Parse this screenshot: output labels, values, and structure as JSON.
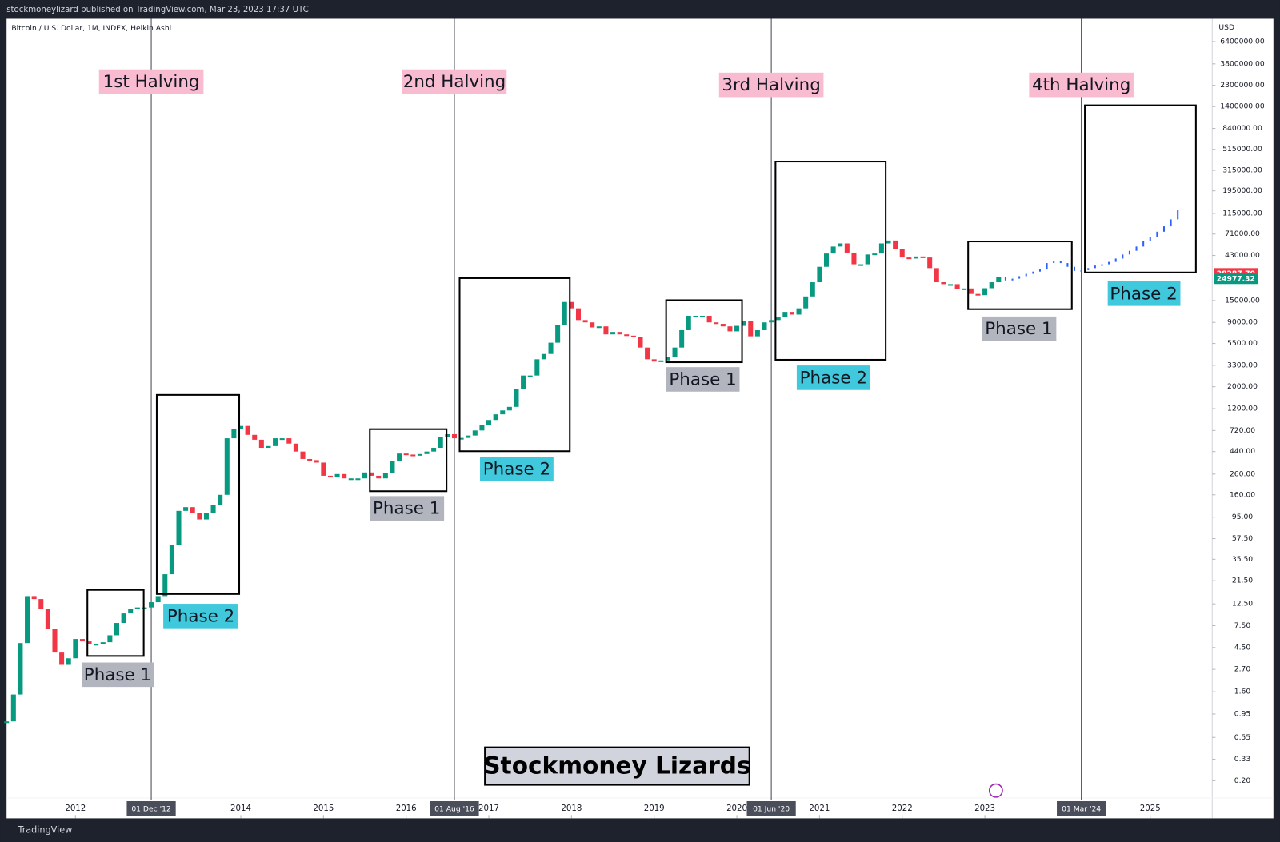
{
  "header": {
    "text": "stockmoneylizard published on TradingView.com, Mar 23, 2023 17:37 UTC"
  },
  "chart_data": {
    "type": "candlestick",
    "symbol": "Bitcoin / U.S. Dollar, 1M, INDEX, Heikin Ashi",
    "y_unit": "USD",
    "log_scale": true,
    "up_color": "#089981",
    "down_color": "#f23645",
    "x": [
      "2011-03",
      "2011-04",
      "2011-05",
      "2011-06",
      "2011-07",
      "2011-08",
      "2011-09",
      "2011-10",
      "2011-11",
      "2011-12",
      "2012-01",
      "2012-02",
      "2012-03",
      "2012-04",
      "2012-05",
      "2012-06",
      "2012-07",
      "2012-08",
      "2012-09",
      "2012-10",
      "2012-11",
      "2012-12",
      "2013-01",
      "2013-02",
      "2013-03",
      "2013-04",
      "2013-05",
      "2013-06",
      "2013-07",
      "2013-08",
      "2013-09",
      "2013-10",
      "2013-11",
      "2013-12",
      "2014-01",
      "2014-02",
      "2014-03",
      "2014-04",
      "2014-05",
      "2014-06",
      "2014-07",
      "2014-08",
      "2014-09",
      "2014-10",
      "2014-11",
      "2014-12",
      "2015-01",
      "2015-02",
      "2015-03",
      "2015-04",
      "2015-05",
      "2015-06",
      "2015-07",
      "2015-08",
      "2015-09",
      "2015-10",
      "2015-11",
      "2015-12",
      "2016-01",
      "2016-02",
      "2016-03",
      "2016-04",
      "2016-05",
      "2016-06",
      "2016-07",
      "2016-08",
      "2016-09",
      "2016-10",
      "2016-11",
      "2016-12",
      "2017-01",
      "2017-02",
      "2017-03",
      "2017-04",
      "2017-05",
      "2017-06",
      "2017-07",
      "2017-08",
      "2017-09",
      "2017-10",
      "2017-11",
      "2017-12",
      "2018-01",
      "2018-02",
      "2018-03",
      "2018-04",
      "2018-05",
      "2018-06",
      "2018-07",
      "2018-08",
      "2018-09",
      "2018-10",
      "2018-11",
      "2018-12",
      "2019-01",
      "2019-02",
      "2019-03",
      "2019-04",
      "2019-05",
      "2019-06",
      "2019-07",
      "2019-08",
      "2019-09",
      "2019-10",
      "2019-11",
      "2019-12",
      "2020-01",
      "2020-02",
      "2020-03",
      "2020-04",
      "2020-05",
      "2020-06",
      "2020-07",
      "2020-08",
      "2020-09",
      "2020-10",
      "2020-11",
      "2020-12",
      "2021-01",
      "2021-02",
      "2021-03",
      "2021-04",
      "2021-05",
      "2021-06",
      "2021-07",
      "2021-08",
      "2021-09",
      "2021-10",
      "2021-11",
      "2021-12",
      "2022-01",
      "2022-02",
      "2022-03",
      "2022-04",
      "2022-05",
      "2022-06",
      "2022-07",
      "2022-08",
      "2022-09",
      "2022-10",
      "2022-11",
      "2022-12",
      "2023-01",
      "2023-02",
      "2023-03"
    ],
    "values": [
      0.8,
      1.5,
      5,
      15,
      14,
      11,
      7,
      4,
      3,
      3.5,
      5.5,
      5.2,
      4.9,
      4.9,
      5.1,
      6,
      8,
      10,
      11,
      11.5,
      11.5,
      13,
      15,
      25,
      50,
      110,
      120,
      105,
      90,
      105,
      125,
      160,
      600,
      750,
      800,
      650,
      580,
      480,
      500,
      600,
      600,
      530,
      440,
      370,
      360,
      340,
      250,
      240,
      260,
      235,
      235,
      235,
      270,
      250,
      235,
      265,
      350,
      420,
      410,
      400,
      415,
      440,
      480,
      620,
      660,
      600,
      605,
      640,
      720,
      820,
      920,
      1050,
      1150,
      1250,
      1900,
      2600,
      2600,
      3800,
      4300,
      5600,
      8500,
      14500,
      12500,
      9500,
      9000,
      8000,
      8200,
      6800,
      7200,
      6800,
      6600,
      6400,
      5000,
      3800,
      3600,
      3700,
      4000,
      5000,
      7500,
      10500,
      10500,
      10500,
      9000,
      8700,
      8200,
      7300,
      8300,
      9300,
      6500,
      7500,
      9000,
      9500,
      10100,
      11500,
      10800,
      12500,
      16500,
      23000,
      33000,
      45000,
      53000,
      57000,
      46000,
      35000,
      35000,
      44000,
      45000,
      57000,
      61000,
      50000,
      41000,
      40000,
      42000,
      41000,
      32000,
      23000,
      22000,
      22000,
      19800,
      19900,
      17500,
      17000,
      20000,
      23000,
      26000
    ],
    "projection": {
      "color": "#2962ff",
      "x": [
        "2023-04",
        "2023-05",
        "2023-06",
        "2023-07",
        "2023-08",
        "2023-09",
        "2023-10",
        "2023-11",
        "2023-12",
        "2024-01",
        "2024-02",
        "2024-03",
        "2024-04",
        "2024-05",
        "2024-06",
        "2024-07",
        "2024-08",
        "2024-09",
        "2024-10",
        "2024-11",
        "2024-12",
        "2025-01",
        "2025-02",
        "2025-03",
        "2025-04",
        "2025-05"
      ],
      "values": [
        24000,
        25000,
        26500,
        28000,
        29500,
        31000,
        36000,
        38000,
        36000,
        33000,
        30000,
        30500,
        32000,
        34000,
        35000,
        37000,
        40000,
        44000,
        48000,
        53000,
        60000,
        66000,
        75000,
        85000,
        100000,
        125000
      ]
    },
    "xlim": [
      "2011-03",
      "2025-10"
    ],
    "xticks": [
      {
        "value": "2012-01",
        "label": "2012"
      },
      {
        "value": "2014-01",
        "label": "2014"
      },
      {
        "value": "2015-01",
        "label": "2015"
      },
      {
        "value": "2016-01",
        "label": "2016"
      },
      {
        "value": "2017-01",
        "label": "2017"
      },
      {
        "value": "2018-01",
        "label": "2018"
      },
      {
        "value": "2019-01",
        "label": "2019"
      },
      {
        "value": "2020-01",
        "label": "2020"
      },
      {
        "value": "2021-01",
        "label": "2021"
      },
      {
        "value": "2022-01",
        "label": "2022"
      },
      {
        "value": "2023-01",
        "label": "2023"
      },
      {
        "value": "2025-01",
        "label": "2025"
      }
    ],
    "ylim": [
      0.083,
      10900000
    ],
    "yticks": [
      {
        "value": 6400000,
        "label": "6400000.00"
      },
      {
        "value": 3800000,
        "label": "3800000.00"
      },
      {
        "value": 2300000,
        "label": "2300000.00"
      },
      {
        "value": 1400000,
        "label": "1400000.00"
      },
      {
        "value": 840000,
        "label": "840000.00"
      },
      {
        "value": 515000,
        "label": "515000.00"
      },
      {
        "value": 315000,
        "label": "315000.00"
      },
      {
        "value": 195000,
        "label": "195000.00"
      },
      {
        "value": 115000,
        "label": "115000.00"
      },
      {
        "value": 71000,
        "label": "71000.00"
      },
      {
        "value": 43000,
        "label": "43000.00"
      },
      {
        "value": 15000,
        "label": "15000.00"
      },
      {
        "value": 9000,
        "label": "9000.00"
      },
      {
        "value": 5500,
        "label": "5500.00"
      },
      {
        "value": 3300,
        "label": "3300.00"
      },
      {
        "value": 2000,
        "label": "2000.00"
      },
      {
        "value": 1200,
        "label": "1200.00"
      },
      {
        "value": 720,
        "label": "720.00"
      },
      {
        "value": 440,
        "label": "440.00"
      },
      {
        "value": 260,
        "label": "260.00"
      },
      {
        "value": 160,
        "label": "160.00"
      },
      {
        "value": 95,
        "label": "95.00"
      },
      {
        "value": 57.5,
        "label": "57.50"
      },
      {
        "value": 35.5,
        "label": "35.50"
      },
      {
        "value": 21.5,
        "label": "21.50"
      },
      {
        "value": 12.5,
        "label": "12.50"
      },
      {
        "value": 7.5,
        "label": "7.50"
      },
      {
        "value": 4.5,
        "label": "4.50"
      },
      {
        "value": 2.7,
        "label": "2.70"
      },
      {
        "value": 1.6,
        "label": "1.60"
      },
      {
        "value": 0.95,
        "label": "0.95"
      },
      {
        "value": 0.55,
        "label": "0.55"
      },
      {
        "value": 0.33,
        "label": "0.33"
      },
      {
        "value": 0.2,
        "label": "0.20"
      }
    ],
    "price_labels": [
      {
        "value": 28287.7,
        "label": "28287.70",
        "color": "#f23645"
      },
      {
        "value": 24977.32,
        "label": "24977.32",
        "color": "#089981"
      }
    ],
    "halvings": [
      {
        "label": "1st Halving",
        "x": "2012-12",
        "date_label": "01 Dec '12"
      },
      {
        "label": "2nd Halving",
        "x": "2016-08",
        "date_label": "01 Aug '16"
      },
      {
        "label": "3rd Halving",
        "x": "2020-06",
        "date_label": "01 Jun '20"
      },
      {
        "label": "4th Halving",
        "x": "2024-03",
        "date_label": "01 Mar '24"
      }
    ],
    "phase_labels": [
      "Phase 1",
      "Phase 2",
      "Phase 1",
      "Phase 2",
      "Phase 1",
      "Phase 2",
      "Phase 1",
      "Phase 2"
    ],
    "watermark": "Stockmoney Lizards"
  },
  "footer": {
    "brand": "TradingView"
  }
}
